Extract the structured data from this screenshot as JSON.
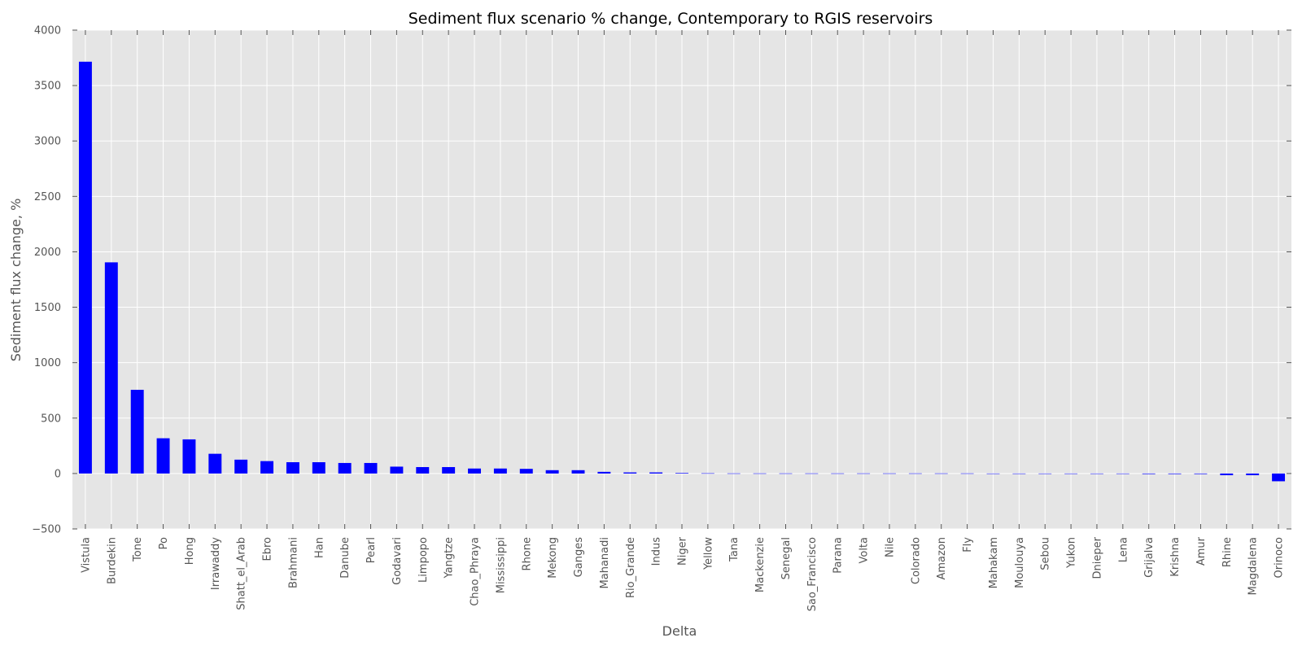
{
  "chart_data": {
    "type": "bar",
    "title": "Sediment flux scenario % change, Contemporary to RGIS reservoirs",
    "xlabel": "Delta",
    "ylabel": "Sediment flux change, %",
    "ylim": [
      -500,
      4000
    ],
    "yticks": [
      -500,
      0,
      500,
      1000,
      1500,
      2000,
      2500,
      3000,
      3500,
      4000
    ],
    "ytick_labels": [
      "−500",
      "0",
      "500",
      "1000",
      "1500",
      "2000",
      "2500",
      "3000",
      "3500",
      "4000"
    ],
    "grid": true,
    "legend": "none",
    "colors": {
      "bar": "#0000ff",
      "background": "#e5e5e5",
      "grid": "#ffffff",
      "text": "#555555"
    },
    "categories": [
      "Vistula",
      "Burdekin",
      "Tone",
      "Po",
      "Hong",
      "Irrawaddy",
      "Shatt_el_Arab",
      "Ebro",
      "Brahmani",
      "Han",
      "Danube",
      "Pearl",
      "Godavari",
      "Limpopo",
      "Yangtze",
      "Chao_Phraya",
      "Mississippi",
      "Rhone",
      "Mekong",
      "Ganges",
      "Mahanadi",
      "Rio_Grande",
      "Indus",
      "Niger",
      "Yellow",
      "Tana",
      "Mackenzie",
      "Senegal",
      "Sao_Francisco",
      "Parana",
      "Volta",
      "Nile",
      "Colorado",
      "Amazon",
      "Fly",
      "Mahakam",
      "Moulouya",
      "Sebou",
      "Yukon",
      "Dnieper",
      "Lena",
      "Grijalva",
      "Krishna",
      "Amur",
      "Rhine",
      "Magdalena",
      "Orinoco"
    ],
    "values": [
      3715,
      1905,
      755,
      318,
      308,
      178,
      125,
      112,
      102,
      102,
      95,
      95,
      62,
      58,
      58,
      45,
      45,
      42,
      30,
      30,
      15,
      10,
      10,
      5,
      2,
      1,
      1,
      1,
      1,
      1,
      1,
      1,
      1,
      1,
      1,
      0,
      0,
      0,
      0,
      0,
      0,
      -5,
      -5,
      -5,
      -15,
      -15,
      -70
    ]
  }
}
